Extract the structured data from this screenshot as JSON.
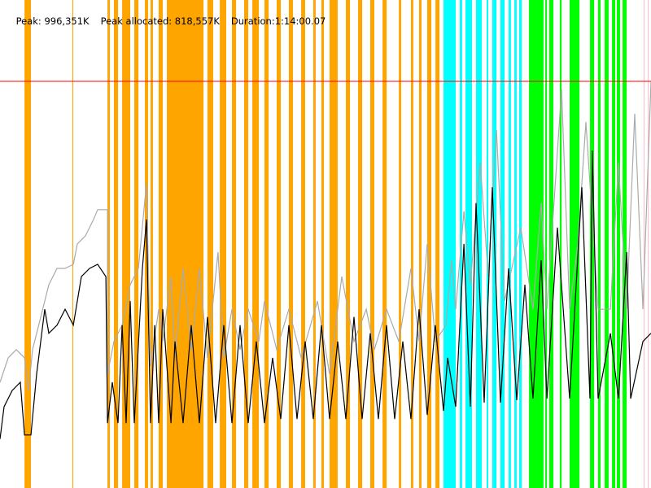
{
  "header": {
    "peak": "Peak: 996,351K",
    "peak_allocated": "Peak allocated: 818,557K",
    "duration": "Duration:1:14:00.07"
  },
  "chart_data": {
    "type": "line",
    "title": "",
    "xlabel": "",
    "ylabel": "",
    "x_unit_note": "",
    "xlim": [
      0,
      4440
    ],
    "ylim": [
      0,
      1195621
    ],
    "grid": false,
    "peak_value": 996351,
    "colors": {
      "peak_line": "#ff0000",
      "committed": "#aaaaaa",
      "allocated": "#000000",
      "band_orange": "#ffa500",
      "band_cyan": "#00ffff",
      "band_green": "#00ff00",
      "band_pink": "#ffc0cb"
    },
    "bands": {
      "orange": [
        [
          167,
          211
        ],
        [
          494,
          500
        ],
        [
          733,
          749
        ],
        [
          777,
          805
        ],
        [
          833,
          888
        ],
        [
          916,
          944
        ],
        [
          988,
          1010
        ],
        [
          1027,
          1043
        ],
        [
          1082,
          1110
        ],
        [
          1138,
          1388
        ],
        [
          1415,
          1454
        ],
        [
          1499,
          1543
        ],
        [
          1582,
          1610
        ],
        [
          1665,
          1693
        ],
        [
          1721,
          1765
        ],
        [
          1804,
          1832
        ],
        [
          1887,
          1915
        ],
        [
          1970,
          1998
        ],
        [
          2054,
          2081
        ],
        [
          2137,
          2153
        ],
        [
          2192,
          2209
        ],
        [
          2248,
          2303
        ],
        [
          2359,
          2387
        ],
        [
          2442,
          2470
        ],
        [
          2525,
          2553
        ],
        [
          2609,
          2637
        ],
        [
          2720,
          2736
        ],
        [
          2803,
          2819
        ],
        [
          2858,
          2875
        ],
        [
          2914,
          2942
        ],
        [
          2970,
          2997
        ]
      ],
      "cyan": [
        [
          3025,
          3108
        ],
        [
          3136,
          3152
        ],
        [
          3175,
          3219
        ],
        [
          3247,
          3286
        ],
        [
          3319,
          3330
        ],
        [
          3358,
          3386
        ],
        [
          3413,
          3441
        ],
        [
          3469,
          3485
        ],
        [
          3508,
          3524
        ],
        [
          3541,
          3558
        ]
      ],
      "green": [
        [
          3608,
          3707
        ],
        [
          3719,
          3730
        ],
        [
          3746,
          3774
        ],
        [
          3818,
          3830
        ],
        [
          3885,
          3952
        ],
        [
          4024,
          4052
        ],
        [
          4079,
          4096
        ],
        [
          4124,
          4151
        ],
        [
          4174,
          4196
        ],
        [
          4207,
          4229
        ],
        [
          4246,
          4274
        ]
      ],
      "pink": [
        [
          4390,
          4396
        ],
        [
          4418,
          4424
        ]
      ]
    },
    "series": [
      {
        "key": "committed",
        "points": [
          [
            0,
            259000
          ],
          [
            56,
            319000
          ],
          [
            111,
            339000
          ],
          [
            167,
            319000
          ],
          [
            194,
            239000
          ],
          [
            222,
            339000
          ],
          [
            278,
            419000
          ],
          [
            333,
            498000
          ],
          [
            389,
            538000
          ],
          [
            444,
            538000
          ],
          [
            500,
            548000
          ],
          [
            527,
            598000
          ],
          [
            583,
            618000
          ],
          [
            638,
            658000
          ],
          [
            666,
            682000
          ],
          [
            733,
            682000
          ],
          [
            733,
            279000
          ],
          [
            777,
            359000
          ],
          [
            833,
            399000
          ],
          [
            888,
            498000
          ],
          [
            944,
            538000
          ],
          [
            999,
            747000
          ],
          [
            1027,
            299000
          ],
          [
            1082,
            438000
          ],
          [
            1110,
            359000
          ],
          [
            1166,
            518000
          ],
          [
            1193,
            319000
          ],
          [
            1249,
            538000
          ],
          [
            1304,
            339000
          ],
          [
            1360,
            538000
          ],
          [
            1415,
            319000
          ],
          [
            1487,
            578000
          ],
          [
            1526,
            319000
          ],
          [
            1582,
            438000
          ],
          [
            1637,
            339000
          ],
          [
            1693,
            438000
          ],
          [
            1765,
            359000
          ],
          [
            1804,
            458000
          ],
          [
            1887,
            339000
          ],
          [
            1970,
            438000
          ],
          [
            2054,
            319000
          ],
          [
            2165,
            458000
          ],
          [
            2248,
            279000
          ],
          [
            2331,
            518000
          ],
          [
            2414,
            359000
          ],
          [
            2498,
            438000
          ],
          [
            2553,
            339000
          ],
          [
            2636,
            438000
          ],
          [
            2720,
            359000
          ],
          [
            2803,
            538000
          ],
          [
            2858,
            359000
          ],
          [
            2914,
            598000
          ],
          [
            2969,
            359000
          ],
          [
            3041,
            399000
          ],
          [
            3080,
            558000
          ],
          [
            3108,
            438000
          ],
          [
            3164,
            678000
          ],
          [
            3208,
            498000
          ],
          [
            3275,
            797000
          ],
          [
            3330,
            518000
          ],
          [
            3386,
            877000
          ],
          [
            3441,
            458000
          ],
          [
            3552,
            638000
          ],
          [
            3635,
            438000
          ],
          [
            3691,
            698000
          ],
          [
            3730,
            438000
          ],
          [
            3830,
            977000
          ],
          [
            3885,
            438000
          ],
          [
            3941,
            598000
          ],
          [
            3996,
            897000
          ],
          [
            4079,
            438000
          ],
          [
            4163,
            438000
          ],
          [
            4218,
            797000
          ],
          [
            4274,
            438000
          ],
          [
            4329,
            917000
          ],
          [
            4385,
            438000
          ],
          [
            4440,
            996000
          ]
        ]
      },
      {
        "key": "allocated",
        "points": [
          [
            0,
            120000
          ],
          [
            28,
            199000
          ],
          [
            83,
            239000
          ],
          [
            139,
            259000
          ],
          [
            167,
            130000
          ],
          [
            211,
            130000
          ],
          [
            250,
            279000
          ],
          [
            305,
            438000
          ],
          [
            333,
            379000
          ],
          [
            389,
            399000
          ],
          [
            444,
            438000
          ],
          [
            500,
            399000
          ],
          [
            555,
            518000
          ],
          [
            611,
            538000
          ],
          [
            666,
            548000
          ],
          [
            722,
            518000
          ],
          [
            733,
            159000
          ],
          [
            766,
            259000
          ],
          [
            805,
            159000
          ],
          [
            833,
            399000
          ],
          [
            860,
            159000
          ],
          [
            888,
            458000
          ],
          [
            916,
            159000
          ],
          [
            971,
            538000
          ],
          [
            999,
            658000
          ],
          [
            1027,
            159000
          ],
          [
            1055,
            399000
          ],
          [
            1082,
            159000
          ],
          [
            1110,
            438000
          ],
          [
            1166,
            159000
          ],
          [
            1193,
            359000
          ],
          [
            1249,
            159000
          ],
          [
            1304,
            399000
          ],
          [
            1360,
            159000
          ],
          [
            1415,
            419000
          ],
          [
            1471,
            159000
          ],
          [
            1526,
            399000
          ],
          [
            1582,
            159000
          ],
          [
            1637,
            399000
          ],
          [
            1693,
            159000
          ],
          [
            1748,
            359000
          ],
          [
            1804,
            159000
          ],
          [
            1859,
            319000
          ],
          [
            1915,
            169000
          ],
          [
            1970,
            399000
          ],
          [
            2026,
            169000
          ],
          [
            2081,
            359000
          ],
          [
            2137,
            169000
          ],
          [
            2192,
            399000
          ],
          [
            2248,
            169000
          ],
          [
            2303,
            359000
          ],
          [
            2359,
            169000
          ],
          [
            2414,
            419000
          ],
          [
            2470,
            169000
          ],
          [
            2525,
            379000
          ],
          [
            2581,
            169000
          ],
          [
            2636,
            399000
          ],
          [
            2692,
            169000
          ],
          [
            2747,
            359000
          ],
          [
            2803,
            169000
          ],
          [
            2858,
            438000
          ],
          [
            2914,
            179000
          ],
          [
            2969,
            399000
          ],
          [
            3025,
            189000
          ],
          [
            3053,
            319000
          ],
          [
            3108,
            199000
          ],
          [
            3164,
            598000
          ],
          [
            3208,
            199000
          ],
          [
            3247,
            698000
          ],
          [
            3302,
            209000
          ],
          [
            3358,
            737000
          ],
          [
            3413,
            209000
          ],
          [
            3469,
            538000
          ],
          [
            3524,
            215000
          ],
          [
            3580,
            498000
          ],
          [
            3635,
            219000
          ],
          [
            3691,
            558000
          ],
          [
            3730,
            219000
          ],
          [
            3802,
            638000
          ],
          [
            3885,
            219000
          ],
          [
            3968,
            737000
          ],
          [
            4024,
            219000
          ],
          [
            4040,
            827000
          ],
          [
            4079,
            219000
          ],
          [
            4163,
            379000
          ],
          [
            4218,
            219000
          ],
          [
            4274,
            578000
          ],
          [
            4301,
            219000
          ],
          [
            4385,
            359000
          ],
          [
            4440,
            379000
          ]
        ]
      }
    ]
  }
}
